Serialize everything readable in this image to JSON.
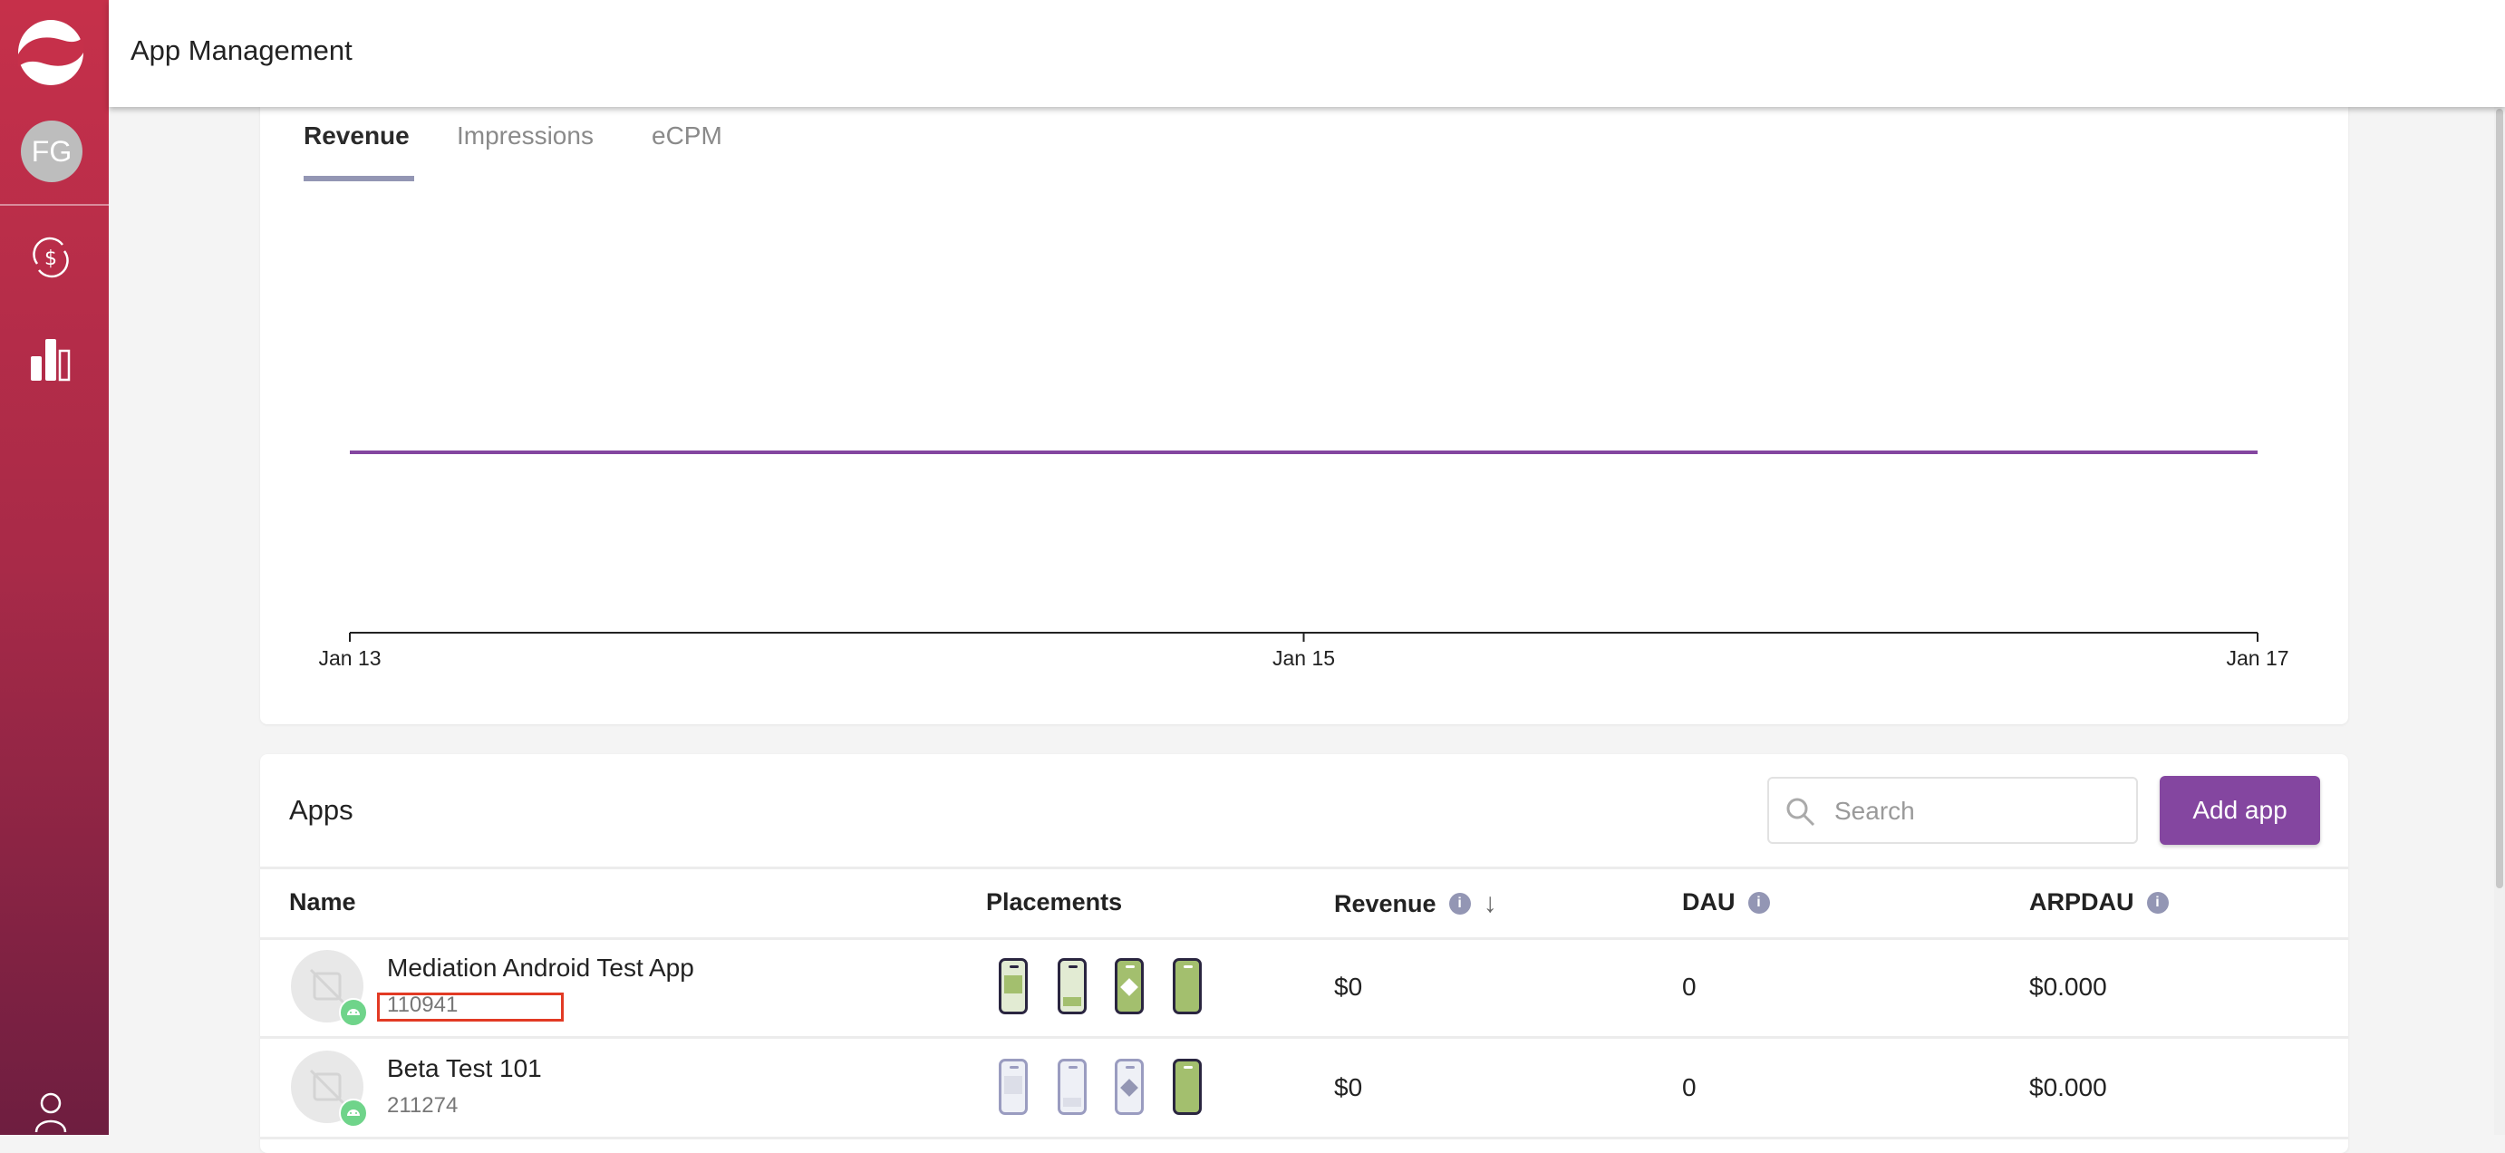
{
  "header": {
    "title": "App Management"
  },
  "sidebar": {
    "avatar_initials": "FG",
    "icons": [
      "logo",
      "monetization-icon",
      "analytics-icon",
      "user-icon"
    ]
  },
  "chart_tabs": [
    {
      "label": "Revenue",
      "active": true
    },
    {
      "label": "Impressions",
      "active": false
    },
    {
      "label": "eCPM",
      "active": false
    }
  ],
  "chart_data": {
    "type": "line",
    "x": [
      "Jan 13",
      "Jan 14",
      "Jan 15",
      "Jan 16",
      "Jan 17"
    ],
    "tick_labels": [
      "Jan 13",
      "Jan 15",
      "Jan 17"
    ],
    "series": [
      {
        "values": [
          0,
          0,
          0,
          0,
          0
        ],
        "color": "#8446a0"
      }
    ],
    "grid": false
  },
  "apps": {
    "title": "Apps",
    "search_placeholder": "Search",
    "add_button": "Add app",
    "columns": {
      "name": "Name",
      "placements": "Placements",
      "revenue": "Revenue",
      "dau": "DAU",
      "arpdau": "ARPDAU"
    },
    "rows": [
      {
        "name": "Mediation Android Test App",
        "id": "110941",
        "platform": "android",
        "placements_active": [
          true,
          true,
          true,
          true
        ],
        "revenue": "$0",
        "dau": "0",
        "arpdau": "$0.000",
        "highlighted_id": true
      },
      {
        "name": "Beta Test 101",
        "id": "211274",
        "platform": "android",
        "placements_active": [
          false,
          false,
          false,
          true
        ],
        "revenue": "$0",
        "dau": "0",
        "arpdau": "$0.000",
        "highlighted_id": false
      }
    ]
  },
  "colors": {
    "accent": "#8446a0",
    "tab_indicator": "#9396b4",
    "sidebar_top": "#c6304a",
    "sidebar_bottom": "#6e1e40",
    "highlight_box": "#e23a24"
  }
}
